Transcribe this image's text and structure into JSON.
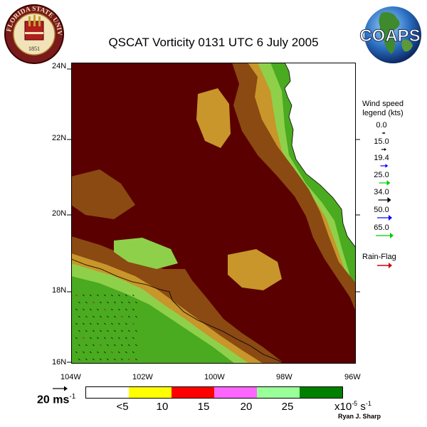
{
  "title": "QSCAT Vorticity 0131 UTC 6 July 2005",
  "logos": {
    "fsu_text": "FLORIDA STATE UNIVERSITY",
    "fsu_year": "1851",
    "coaps_text": "COAPS"
  },
  "lat_labels": [
    "24N",
    "22N",
    "20N",
    "18N",
    "16N"
  ],
  "lon_labels": [
    "104W",
    "102W",
    "100W",
    "98W",
    "96W"
  ],
  "wind_legend": {
    "title_line1": "Wind speed",
    "title_line2": "legend (kts)",
    "entries": [
      {
        "value": "0.0",
        "color": "#000000"
      },
      {
        "value": "15.0",
        "color": "#000000"
      },
      {
        "value": "19.4",
        "color": "#0000ff"
      },
      {
        "value": "25.0",
        "color": "#00cc00"
      },
      {
        "value": "34.0",
        "color": "#000000"
      },
      {
        "value": "50.0",
        "color": "#0000ff"
      },
      {
        "value": "65.0",
        "color": "#00cc00"
      }
    ],
    "rain_flag_label": "Rain-Flag",
    "rain_flag_color": "#cc0000"
  },
  "scale_arrow": {
    "value": "20 ms",
    "exponent": "-1"
  },
  "colorbar": {
    "colors": [
      "#ffffff",
      "#ffff00",
      "#ff0000",
      "#ff66ff",
      "#99ff99",
      "#008000"
    ],
    "labels": [
      "<5",
      "10",
      "15",
      "20",
      "25"
    ],
    "unit_base": "x10",
    "unit_exp": "-5",
    "unit_s": " s",
    "unit_s_exp": "-1"
  },
  "credit": "Ryan J. Sharp"
}
